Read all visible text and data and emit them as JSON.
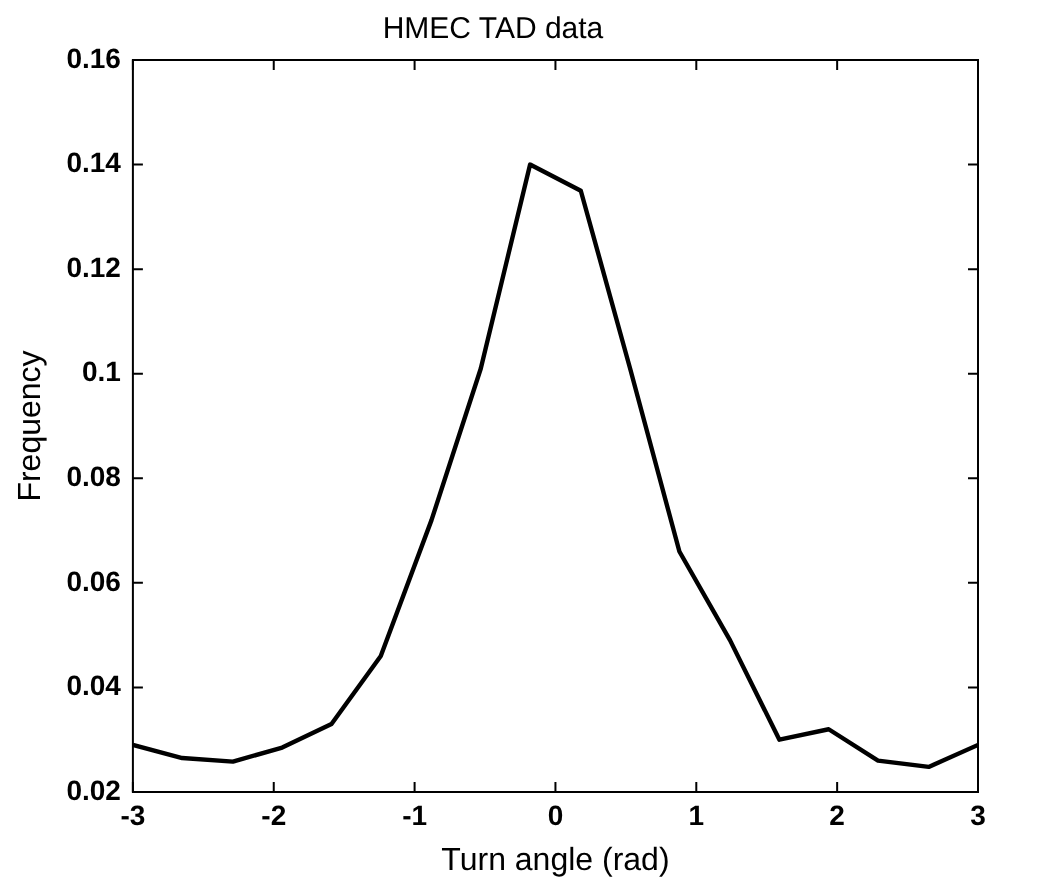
{
  "chart_data": {
    "type": "line",
    "title": "HMEC TAD data",
    "xlabel": "Turn angle (rad)",
    "ylabel": "Frequency",
    "x": [
      -3,
      -2.65,
      -2.29,
      -1.94,
      -1.59,
      -1.24,
      -0.88,
      -0.53,
      -0.18,
      0.18,
      0.53,
      0.88,
      1.24,
      1.59,
      1.94,
      2.29,
      2.65,
      3
    ],
    "values": [
      0.029,
      0.0265,
      0.0258,
      0.0285,
      0.033,
      0.046,
      0.072,
      0.101,
      0.14,
      0.135,
      0.101,
      0.066,
      0.049,
      0.03,
      0.032,
      0.026,
      0.0248,
      0.029
    ],
    "color": "#000000",
    "xlim": [
      -3,
      3
    ],
    "xticks": [
      -3,
      -2,
      -1,
      0,
      1,
      2,
      3
    ],
    "ylim": [
      0.02,
      0.16
    ],
    "yticks": [
      0.02,
      0.04,
      0.06,
      0.08,
      0.1,
      0.12,
      0.14,
      0.16
    ],
    "grid": false,
    "legend": false,
    "marker": "none",
    "line_style": "solid"
  }
}
